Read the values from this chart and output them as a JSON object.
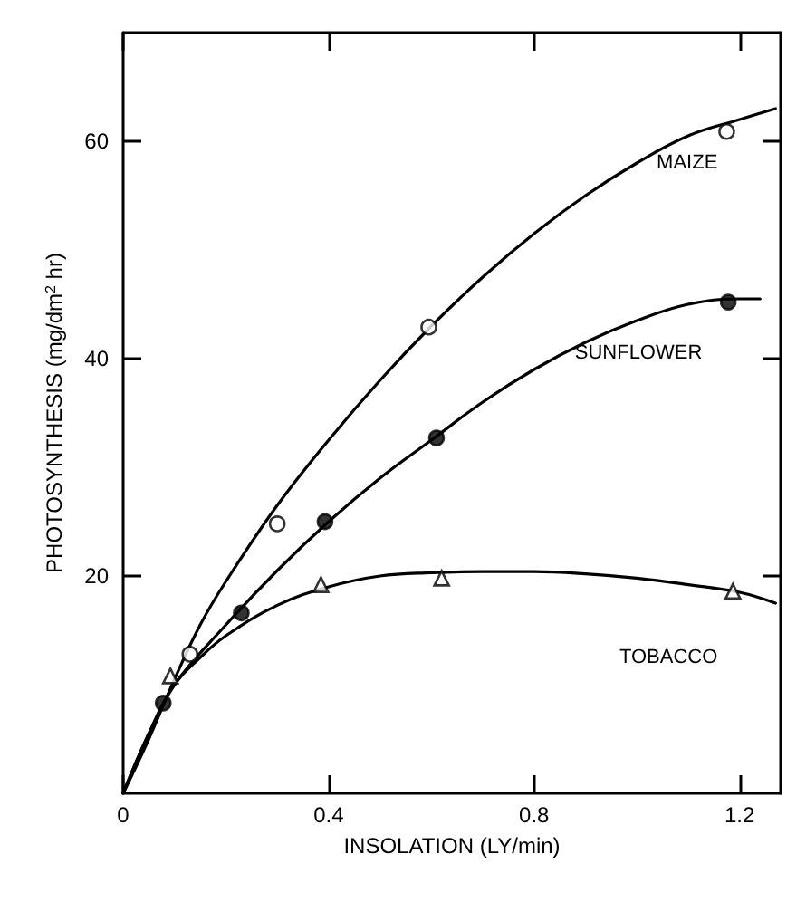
{
  "chart_data": {
    "type": "scatter",
    "xlabel": "INSOLATION (LY/min)",
    "ylabel": "PHOTOSYNTHESIS (mg/dm$^{2}$ hr)",
    "xlim": [
      0,
      1.28
    ],
    "ylim": [
      0,
      70
    ],
    "xticks": [
      0,
      0.4,
      0.8,
      1.2
    ],
    "yticks": [
      20,
      40,
      60
    ],
    "grid": false,
    "legend": false,
    "series": [
      {
        "marker": "circle",
        "color": "#ffffff",
        "x": [
          0.13,
          0.3,
          0.595,
          1.175
        ],
        "values": [
          12.8,
          24.8,
          42.9,
          60.9
        ]
      },
      {
        "marker": "circle",
        "color": "#000000",
        "x": [
          0.078,
          0.23,
          0.393,
          0.61,
          1.178
        ],
        "values": [
          8.3,
          16.6,
          25.0,
          32.7,
          45.2
        ]
      },
      {
        "marker": "triangle",
        "color": "#ffffff",
        "x": [
          0.092,
          0.385,
          0.62,
          1.187
        ],
        "values": [
          10.8,
          19.2,
          19.8,
          18.6
        ]
      },
      {
        "type": "line",
        "name": "MAIZE",
        "color": "#000000",
        "x": [
          0,
          0.05,
          0.1,
          0.15,
          0.2,
          0.3,
          0.4,
          0.5,
          0.6,
          0.7,
          0.8,
          0.9,
          1.0,
          1.1,
          1.2,
          1.27
        ],
        "values": [
          0,
          5,
          10.5,
          15.5,
          19.5,
          26.5,
          32.5,
          38,
          43,
          47.5,
          51.5,
          55,
          58,
          60.5,
          62,
          63
        ]
      },
      {
        "type": "line",
        "name": "SUNFLOWER",
        "color": "#000000",
        "x": [
          0,
          0.05,
          0.1,
          0.2,
          0.3,
          0.4,
          0.5,
          0.6,
          0.7,
          0.8,
          0.9,
          1.0,
          1.1,
          1.2,
          1.24
        ],
        "values": [
          0,
          5.5,
          10,
          15.5,
          20.5,
          25,
          29,
          32.5,
          36,
          39,
          41.5,
          43.5,
          45,
          45.5,
          45.5
        ]
      },
      {
        "type": "line",
        "name": "TOBACCO",
        "color": "#000000",
        "x": [
          0,
          0.05,
          0.1,
          0.15,
          0.2,
          0.3,
          0.4,
          0.5,
          0.6,
          0.7,
          0.8,
          0.9,
          1.0,
          1.1,
          1.2,
          1.27
        ],
        "values": [
          0,
          5.5,
          10,
          12.5,
          14.5,
          17.3,
          19,
          20,
          20.3,
          20.4,
          20.4,
          20.2,
          19.8,
          19.2,
          18.5,
          17.5
        ]
      }
    ]
  }
}
